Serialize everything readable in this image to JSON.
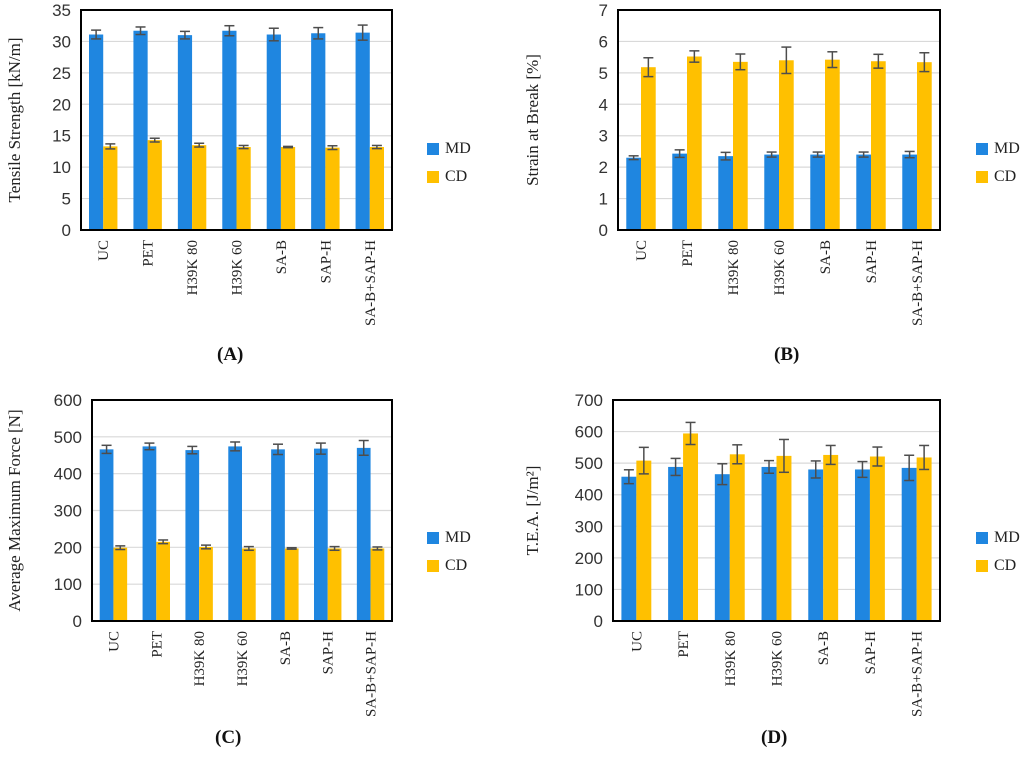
{
  "colors": {
    "MD": "#1f86e0",
    "CD": "#ffc000",
    "grid": "#d9d9d9",
    "axis": "#000000",
    "error": "#4d4d4d"
  },
  "chart_data": [
    {
      "id": "A",
      "type": "bar",
      "panel_label": "(A)",
      "title": "",
      "xlabel": "",
      "ylabel": "Tensile Strength [kN/m]",
      "ylim": [
        0,
        35
      ],
      "yticks": [
        0,
        5,
        10,
        15,
        20,
        25,
        30,
        35
      ],
      "grid": true,
      "legend": "right",
      "categories": [
        "UC",
        "PET",
        "H39K 80",
        "H39K 60",
        "SA-B",
        "SAP-H",
        "SA-B+SAP-H"
      ],
      "series": [
        {
          "name": "MD",
          "values": [
            31.1,
            31.7,
            31.0,
            31.7,
            31.1,
            31.3,
            31.4
          ],
          "errors": [
            0.7,
            0.6,
            0.6,
            0.8,
            1.0,
            0.9,
            1.2
          ]
        },
        {
          "name": "CD",
          "values": [
            13.3,
            14.3,
            13.5,
            13.2,
            13.2,
            13.1,
            13.2
          ],
          "errors": [
            0.4,
            0.3,
            0.3,
            0.25,
            0.1,
            0.3,
            0.25
          ]
        }
      ]
    },
    {
      "id": "B",
      "type": "bar",
      "panel_label": "(B)",
      "title": "",
      "xlabel": "",
      "ylabel": "Strain at Break [%]",
      "ylim": [
        0,
        7
      ],
      "yticks": [
        0,
        1,
        2,
        3,
        4,
        5,
        6,
        7
      ],
      "grid": true,
      "legend": "right",
      "categories": [
        "UC",
        "PET",
        "H39K 80",
        "H39K 60",
        "SA-B",
        "SAP-H",
        "SA-B+SAP-H"
      ],
      "series": [
        {
          "name": "MD",
          "values": [
            2.3,
            2.43,
            2.35,
            2.4,
            2.4,
            2.4,
            2.4
          ],
          "errors": [
            0.06,
            0.12,
            0.12,
            0.08,
            0.08,
            0.08,
            0.1
          ]
        },
        {
          "name": "CD",
          "values": [
            5.18,
            5.52,
            5.35,
            5.4,
            5.42,
            5.37,
            5.34
          ],
          "errors": [
            0.3,
            0.18,
            0.25,
            0.42,
            0.25,
            0.22,
            0.3
          ]
        }
      ]
    },
    {
      "id": "C",
      "type": "bar",
      "panel_label": "(C)",
      "title": "",
      "xlabel": "",
      "ylabel": "Average Maximum Force [N]",
      "ylim": [
        0,
        600
      ],
      "yticks": [
        0,
        100,
        200,
        300,
        400,
        500,
        600
      ],
      "grid": true,
      "legend": "right",
      "categories": [
        "UC",
        "PET",
        "H39K 80",
        "H39K 60",
        "SA-B",
        "SAP-H",
        "SA-B+SAP-H"
      ],
      "series": [
        {
          "name": "MD",
          "values": [
            466,
            474,
            464,
            474,
            466,
            468,
            470
          ],
          "errors": [
            11,
            9,
            10,
            12,
            14,
            15,
            20
          ]
        },
        {
          "name": "CD",
          "values": [
            199,
            215,
            201,
            197,
            197,
            197,
            197
          ],
          "errors": [
            5,
            5,
            5,
            5,
            2,
            5,
            4
          ]
        }
      ]
    },
    {
      "id": "D",
      "type": "bar",
      "panel_label": "(D)",
      "title": "",
      "xlabel": "",
      "ylabel": "T.E.A. [J/m²]",
      "ylim": [
        0,
        700
      ],
      "yticks": [
        0,
        100,
        200,
        300,
        400,
        500,
        600,
        700
      ],
      "grid": true,
      "legend": "right",
      "categories": [
        "UC",
        "PET",
        "H39K 80",
        "H39K 60",
        "SA-B",
        "SAP-H",
        "SA-B+SAP-H"
      ],
      "series": [
        {
          "name": "MD",
          "values": [
            457,
            488,
            465,
            488,
            480,
            480,
            485
          ],
          "errors": [
            22,
            27,
            33,
            20,
            27,
            25,
            40
          ]
        },
        {
          "name": "CD",
          "values": [
            508,
            594,
            528,
            523,
            526,
            521,
            518
          ],
          "errors": [
            42,
            35,
            30,
            52,
            30,
            30,
            38
          ]
        }
      ]
    }
  ]
}
